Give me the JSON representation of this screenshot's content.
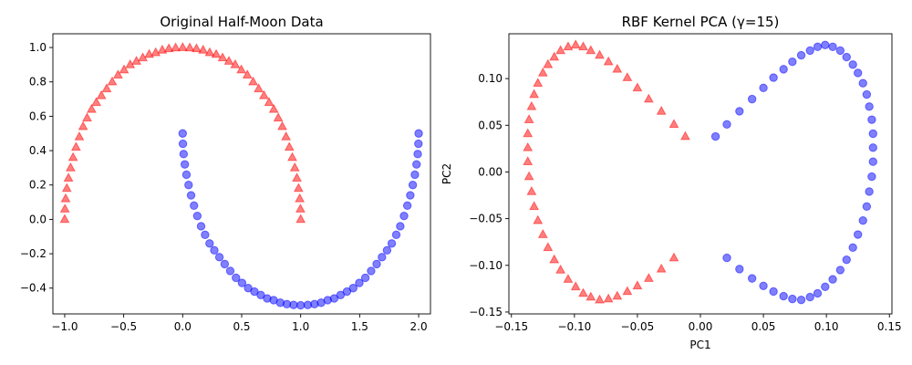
{
  "figure": {
    "marker_colors": {
      "moon_a": "#ff0000",
      "moon_b": "#0000ff"
    },
    "marker_alpha": 0.5,
    "marker_shapes": {
      "moon_a": "triangle-up",
      "moon_b": "circle"
    }
  },
  "chart_data": [
    {
      "type": "scatter",
      "title": "Original Half-Moon Data",
      "xlabel": "",
      "ylabel": "",
      "xlim": [
        -1.1,
        2.1
      ],
      "ylim": [
        -0.55,
        1.08
      ],
      "grid": false,
      "legend": "none",
      "xticks": [
        -1.0,
        -0.5,
        0.0,
        0.5,
        1.0,
        1.5,
        2.0
      ],
      "xtick_labels": [
        "−1.0",
        "−0.5",
        "0.0",
        "0.5",
        "1.0",
        "1.5",
        "2.0"
      ],
      "yticks": [
        -0.4,
        -0.2,
        0.0,
        0.2,
        0.4,
        0.6,
        0.8,
        1.0
      ],
      "ytick_labels": [
        "−0.4",
        "−0.2",
        "0.0",
        "0.2",
        "0.4",
        "0.6",
        "0.8",
        "1.0"
      ],
      "series": [
        {
          "marker": "triangle-up",
          "color": "#ff0000",
          "x": [
            1.0,
            0.998,
            0.992,
            0.982,
            0.968,
            0.95,
            0.929,
            0.904,
            0.876,
            0.844,
            0.81,
            0.772,
            0.732,
            0.689,
            0.644,
            0.597,
            0.548,
            0.497,
            0.445,
            0.392,
            0.338,
            0.284,
            0.229,
            0.173,
            0.117,
            0.06,
            0.0,
            -0.06,
            -0.117,
            -0.173,
            -0.229,
            -0.284,
            -0.338,
            -0.392,
            -0.445,
            -0.497,
            -0.548,
            -0.597,
            -0.644,
            -0.689,
            -0.732,
            -0.772,
            -0.81,
            -0.844,
            -0.876,
            -0.904,
            -0.929,
            -0.95,
            -0.968,
            -0.982,
            -0.992,
            -0.998,
            -1.0
          ],
          "y": [
            0.0,
            0.06,
            0.12,
            0.18,
            0.24,
            0.3,
            0.36,
            0.42,
            0.48,
            0.54,
            0.59,
            0.64,
            0.68,
            0.72,
            0.76,
            0.8,
            0.84,
            0.87,
            0.9,
            0.92,
            0.94,
            0.96,
            0.97,
            0.985,
            0.993,
            0.998,
            1.0,
            0.998,
            0.993,
            0.985,
            0.97,
            0.96,
            0.94,
            0.92,
            0.9,
            0.87,
            0.84,
            0.8,
            0.76,
            0.72,
            0.68,
            0.64,
            0.59,
            0.54,
            0.48,
            0.42,
            0.36,
            0.3,
            0.24,
            0.18,
            0.12,
            0.06,
            0.0
          ]
        },
        {
          "marker": "circle",
          "color": "#0000ff",
          "x": [
            0.0,
            0.002,
            0.008,
            0.018,
            0.032,
            0.05,
            0.071,
            0.096,
            0.124,
            0.156,
            0.19,
            0.228,
            0.268,
            0.311,
            0.356,
            0.403,
            0.452,
            0.503,
            0.555,
            0.608,
            0.662,
            0.716,
            0.771,
            0.827,
            0.883,
            0.94,
            1.0,
            1.06,
            1.117,
            1.173,
            1.229,
            1.284,
            1.338,
            1.392,
            1.445,
            1.497,
            1.548,
            1.597,
            1.644,
            1.689,
            1.732,
            1.772,
            1.81,
            1.844,
            1.876,
            1.904,
            1.929,
            1.95,
            1.968,
            1.982,
            1.992,
            1.998,
            2.0
          ],
          "y": [
            0.5,
            0.44,
            0.38,
            0.32,
            0.26,
            0.2,
            0.14,
            0.08,
            0.02,
            -0.04,
            -0.09,
            -0.14,
            -0.18,
            -0.22,
            -0.26,
            -0.3,
            -0.34,
            -0.37,
            -0.4,
            -0.42,
            -0.44,
            -0.46,
            -0.47,
            -0.485,
            -0.493,
            -0.498,
            -0.5,
            -0.498,
            -0.493,
            -0.485,
            -0.47,
            -0.46,
            -0.44,
            -0.42,
            -0.4,
            -0.37,
            -0.34,
            -0.3,
            -0.26,
            -0.22,
            -0.18,
            -0.14,
            -0.09,
            -0.04,
            0.02,
            0.08,
            0.14,
            0.2,
            0.26,
            0.32,
            0.38,
            0.44,
            0.5
          ]
        }
      ]
    },
    {
      "type": "scatter",
      "title": "RBF Kernel PCA (γ=15)",
      "xlabel": "PC1",
      "ylabel": "PC2",
      "xlim": [
        -0.152,
        0.152
      ],
      "ylim": [
        -0.152,
        0.148
      ],
      "grid": false,
      "legend": "none",
      "xticks": [
        -0.15,
        -0.1,
        -0.05,
        0.0,
        0.05,
        0.1,
        0.15
      ],
      "xtick_labels": [
        "−0.15",
        "−0.10",
        "−0.05",
        "0.00",
        "0.05",
        "0.10",
        "0.15"
      ],
      "yticks": [
        -0.15,
        -0.1,
        -0.05,
        0.0,
        0.05,
        0.1
      ],
      "ytick_labels": [
        "−0.15",
        "−0.10",
        "−0.05",
        "0.00",
        "0.05",
        "0.10"
      ],
      "series": [
        {
          "marker": "triangle-up",
          "color": "#ff0000",
          "x": [
            -0.012,
            -0.021,
            -0.031,
            -0.041,
            -0.05,
            -0.058,
            -0.066,
            -0.073,
            -0.08,
            -0.087,
            -0.093,
            -0.099,
            -0.105,
            -0.111,
            -0.116,
            -0.121,
            -0.125,
            -0.129,
            -0.132,
            -0.134,
            -0.136,
            -0.137,
            -0.137,
            -0.137,
            -0.136,
            -0.134,
            -0.132,
            -0.129,
            -0.125,
            -0.121,
            -0.116,
            -0.111,
            -0.105,
            -0.099,
            -0.093,
            -0.087,
            -0.08,
            -0.073,
            -0.066,
            -0.058,
            -0.05,
            -0.041,
            -0.031,
            -0.021
          ],
          "y": [
            0.038,
            0.051,
            0.065,
            0.078,
            0.09,
            0.101,
            0.11,
            0.118,
            0.125,
            0.13,
            0.134,
            0.136,
            0.134,
            0.13,
            0.123,
            0.115,
            0.106,
            0.095,
            0.083,
            0.07,
            0.056,
            0.041,
            0.026,
            0.011,
            -0.005,
            -0.021,
            -0.037,
            -0.052,
            -0.067,
            -0.081,
            -0.094,
            -0.105,
            -0.115,
            -0.123,
            -0.13,
            -0.134,
            -0.137,
            -0.136,
            -0.133,
            -0.128,
            -0.122,
            -0.114,
            -0.104,
            -0.092
          ]
        },
        {
          "marker": "circle",
          "color": "#0000ff",
          "x": [
            0.012,
            0.021,
            0.031,
            0.041,
            0.05,
            0.058,
            0.066,
            0.073,
            0.08,
            0.087,
            0.093,
            0.099,
            0.105,
            0.111,
            0.116,
            0.121,
            0.125,
            0.129,
            0.132,
            0.134,
            0.136,
            0.137,
            0.137,
            0.137,
            0.136,
            0.134,
            0.132,
            0.129,
            0.125,
            0.121,
            0.116,
            0.111,
            0.105,
            0.099,
            0.093,
            0.087,
            0.08,
            0.073,
            0.066,
            0.058,
            0.05,
            0.041,
            0.031,
            0.021
          ],
          "y": [
            0.038,
            0.051,
            0.065,
            0.078,
            0.09,
            0.101,
            0.11,
            0.118,
            0.125,
            0.13,
            0.134,
            0.136,
            0.134,
            0.13,
            0.123,
            0.115,
            0.106,
            0.095,
            0.083,
            0.07,
            0.056,
            0.041,
            0.026,
            0.011,
            -0.005,
            -0.021,
            -0.037,
            -0.052,
            -0.067,
            -0.081,
            -0.094,
            -0.105,
            -0.115,
            -0.123,
            -0.13,
            -0.134,
            -0.137,
            -0.136,
            -0.133,
            -0.128,
            -0.122,
            -0.114,
            -0.104,
            -0.092
          ]
        }
      ]
    }
  ]
}
